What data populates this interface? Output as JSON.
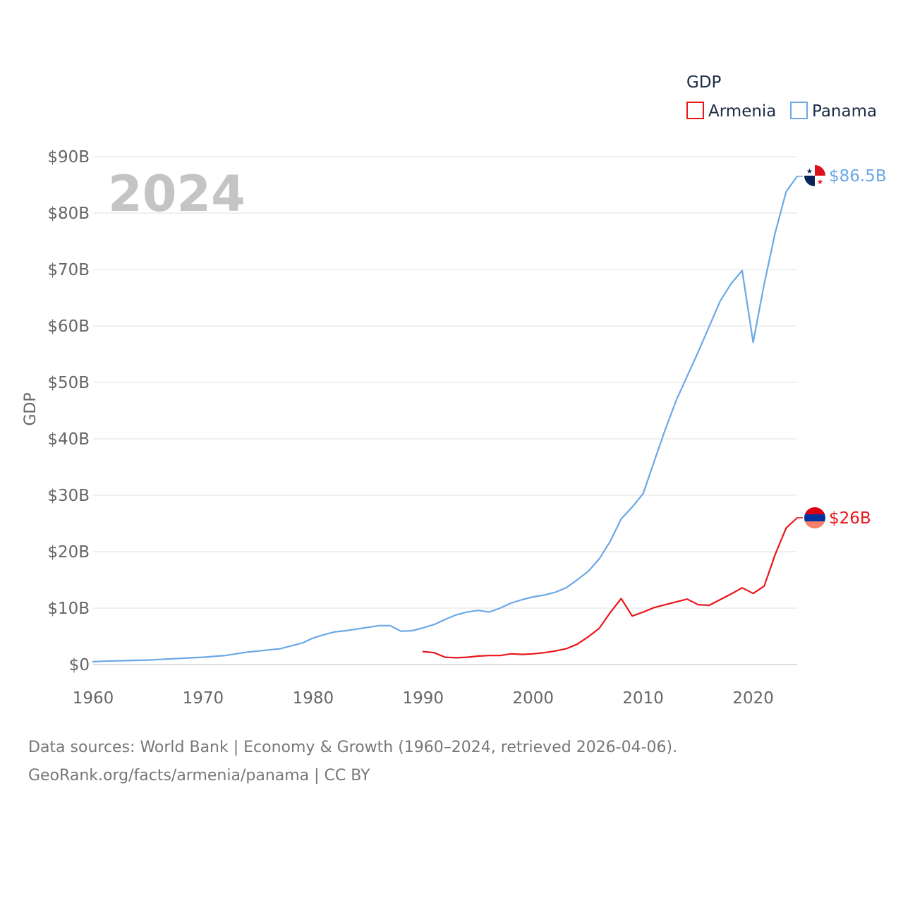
{
  "chart_data": {
    "type": "line",
    "title": "",
    "ylabel": "GDP",
    "xlabel": "",
    "year_watermark": "2024",
    "legend_title": "GDP",
    "legend_position": "top-right",
    "xlim": [
      1960,
      2024
    ],
    "ylim": [
      0,
      90
    ],
    "y_unit": "billions USD",
    "x_ticks": [
      "1960",
      "1970",
      "1980",
      "1990",
      "2000",
      "2010",
      "2020"
    ],
    "x_tick_values": [
      1960,
      1970,
      1980,
      1990,
      2000,
      2010,
      2020
    ],
    "y_ticks": [
      "$0",
      "$10B",
      "$20B",
      "$30B",
      "$40B",
      "$50B",
      "$60B",
      "$70B",
      "$80B",
      "$90B"
    ],
    "y_tick_values": [
      0,
      10,
      20,
      30,
      40,
      50,
      60,
      70,
      80,
      90
    ],
    "grid": true,
    "series": [
      {
        "name": "Armenia",
        "color": "#e8161b",
        "end_label": "$26B",
        "flag": "armenia",
        "x": [
          1990,
          1991,
          1992,
          1993,
          1994,
          1995,
          1996,
          1997,
          1998,
          1999,
          2000,
          2001,
          2002,
          2003,
          2004,
          2005,
          2006,
          2007,
          2008,
          2009,
          2010,
          2011,
          2012,
          2013,
          2014,
          2015,
          2016,
          2017,
          2018,
          2019,
          2020,
          2021,
          2022,
          2023,
          2024
        ],
        "values": [
          2.3,
          2.1,
          1.3,
          1.2,
          1.3,
          1.5,
          1.6,
          1.6,
          1.9,
          1.8,
          1.9,
          2.1,
          2.4,
          2.8,
          3.6,
          4.9,
          6.4,
          9.2,
          11.7,
          8.6,
          9.3,
          10.1,
          10.6,
          11.1,
          11.6,
          10.6,
          10.5,
          11.5,
          12.5,
          13.6,
          12.6,
          13.9,
          19.5,
          24.2,
          26.0
        ]
      },
      {
        "name": "Panama",
        "color": "#6aa8e6",
        "end_label": "$86.5B",
        "flag": "panama",
        "x": [
          1960,
          1961,
          1962,
          1963,
          1964,
          1965,
          1966,
          1967,
          1968,
          1969,
          1970,
          1971,
          1972,
          1973,
          1974,
          1975,
          1976,
          1977,
          1978,
          1979,
          1980,
          1981,
          1982,
          1983,
          1984,
          1985,
          1986,
          1987,
          1988,
          1989,
          1990,
          1991,
          1992,
          1993,
          1994,
          1995,
          1996,
          1997,
          1998,
          1999,
          2000,
          2001,
          2002,
          2003,
          2004,
          2005,
          2006,
          2007,
          2008,
          2009,
          2010,
          2011,
          2012,
          2013,
          2014,
          2015,
          2016,
          2017,
          2018,
          2019,
          2020,
          2021,
          2022,
          2023,
          2024
        ],
        "values": [
          0.5,
          0.6,
          0.65,
          0.7,
          0.75,
          0.8,
          0.9,
          1.0,
          1.1,
          1.2,
          1.3,
          1.45,
          1.6,
          1.9,
          2.2,
          2.4,
          2.6,
          2.8,
          3.3,
          3.8,
          4.7,
          5.3,
          5.8,
          6.0,
          6.3,
          6.6,
          6.9,
          6.9,
          5.9,
          6.0,
          6.5,
          7.1,
          8.0,
          8.8,
          9.3,
          9.6,
          9.3,
          10.0,
          10.9,
          11.5,
          12.0,
          12.3,
          12.8,
          13.6,
          15.0,
          16.5,
          18.7,
          21.8,
          25.8,
          27.9,
          30.3,
          36.0,
          41.6,
          46.8,
          51.1,
          55.4,
          59.9,
          64.4,
          67.5,
          69.8,
          57.1,
          67.4,
          76.5,
          83.8,
          86.5
        ]
      }
    ]
  },
  "footer": {
    "line1": "Data sources: World Bank | Economy & Growth (1960–2024, retrieved 2026-04-06).",
    "line2": "GeoRank.org/facts/armenia/panama | CC BY"
  }
}
